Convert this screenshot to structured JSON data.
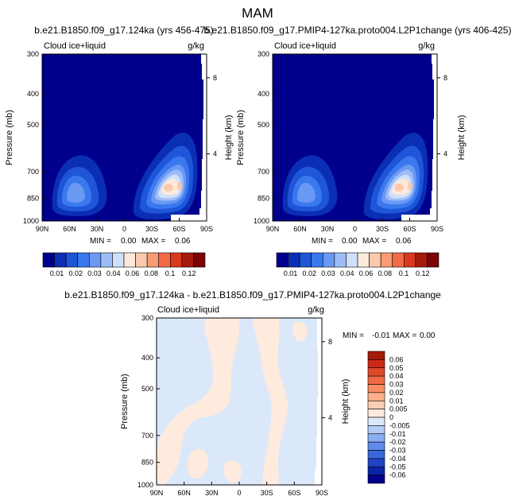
{
  "figure": {
    "title": "MAM"
  },
  "chart_data": [
    {
      "type": "heatmap",
      "title": "b.e21.B1850.f09_g17.124ka (yrs 456-475)",
      "variable": "Cloud ice+liquid",
      "units": "g/kg",
      "xlabel": "",
      "ylabel": "Pressure (mb)",
      "y2label": "Height (km)",
      "x_ticks": [
        "90N",
        "60N",
        "30N",
        "0",
        "30S",
        "60S",
        "90S"
      ],
      "y_ticks": [
        "300",
        "400",
        "500",
        "700",
        "850",
        "1000"
      ],
      "y2_ticks": [
        "8",
        "4"
      ],
      "ylim": [
        1000,
        300
      ],
      "y_scale": "log",
      "stats": {
        "min_label": "MIN =",
        "min": "0.00",
        "max_label": "MAX =",
        "max": "0.06"
      },
      "colorbar": {
        "orientation": "horizontal",
        "labels": [
          "0.01",
          "0.02",
          "0.03",
          "0.04",
          "0.06",
          "0.08",
          "0.1",
          "0.12"
        ],
        "colors": [
          "#00008c",
          "#0a2fb4",
          "#1f55d8",
          "#3a78ee",
          "#6a99f4",
          "#9ebcf7",
          "#cfe0fa",
          "#fde9dc",
          "#fcc9ad",
          "#f99b74",
          "#f26a45",
          "#d9391f",
          "#a61a0c",
          "#7a0504"
        ]
      },
      "features": [
        {
          "name": "northern-maximum",
          "lat": "65N",
          "pressure": 850,
          "value": 0.035
        },
        {
          "name": "southern-maximum",
          "lat": "55S",
          "pressure": 850,
          "value": 0.06
        }
      ]
    },
    {
      "type": "heatmap",
      "title": "b.e21.B1850.f09_g17.PMIP4-127ka.proto004.L2P1change (yrs 406-425)",
      "variable": "Cloud ice+liquid",
      "units": "g/kg",
      "xlabel": "",
      "ylabel": "Pressure (mb)",
      "y2label": "Height (km)",
      "x_ticks": [
        "90N",
        "60N",
        "30N",
        "0",
        "30S",
        "60S",
        "90S"
      ],
      "y_ticks": [
        "300",
        "400",
        "500",
        "700",
        "850",
        "1000"
      ],
      "y2_ticks": [
        "8",
        "4"
      ],
      "ylim": [
        1000,
        300
      ],
      "y_scale": "log",
      "stats": {
        "min_label": "MIN =",
        "min": "0.00",
        "max_label": "MAX =",
        "max": "0.06"
      },
      "colorbar": {
        "orientation": "horizontal",
        "labels": [
          "0.01",
          "0.02",
          "0.03",
          "0.04",
          "0.06",
          "0.08",
          "0.1",
          "0.12"
        ],
        "colors": [
          "#00008c",
          "#0a2fb4",
          "#1f55d8",
          "#3a78ee",
          "#6a99f4",
          "#9ebcf7",
          "#cfe0fa",
          "#fde9dc",
          "#fcc9ad",
          "#f99b74",
          "#f26a45",
          "#d9391f",
          "#a61a0c",
          "#7a0504"
        ]
      },
      "features": [
        {
          "name": "northern-maximum",
          "lat": "65N",
          "pressure": 850,
          "value": 0.035
        },
        {
          "name": "southern-maximum",
          "lat": "55S",
          "pressure": 850,
          "value": 0.06
        }
      ]
    },
    {
      "type": "heatmap",
      "title": "b.e21.B1850.f09_g17.124ka - b.e21.B1850.f09_g17.PMIP4-127ka.proto004.L2P1change",
      "variable": "Cloud ice+liquid",
      "units": "g/kg",
      "xlabel": "",
      "ylabel": "Pressure (mb)",
      "y2label": "Height (km)",
      "x_ticks": [
        "90N",
        "60N",
        "30N",
        "0",
        "30S",
        "60S",
        "90S"
      ],
      "y_ticks": [
        "300",
        "400",
        "500",
        "700",
        "850",
        "1000"
      ],
      "y2_ticks": [
        "8",
        "4"
      ],
      "ylim": [
        1000,
        300
      ],
      "y_scale": "log",
      "stats": {
        "min_label": "MIN =",
        "min": "-0.01",
        "max_label": "MAX =",
        "max": "0.00"
      },
      "colorbar": {
        "orientation": "vertical",
        "labels": [
          "0.06",
          "0.05",
          "0.04",
          "0.03",
          "0.02",
          "0.01",
          "0.005",
          "0",
          "-0.005",
          "-0.01",
          "-0.02",
          "-0.03",
          "-0.04",
          "-0.05",
          "-0.06"
        ],
        "colors": [
          "#a61a0c",
          "#cc2a16",
          "#e04a28",
          "#f26a45",
          "#f78d62",
          "#fab08a",
          "#fccfb4",
          "#feebdd",
          "#dbe8fa",
          "#b4cdf6",
          "#8aaef2",
          "#5f8bea",
          "#3a68dc",
          "#1f45c4",
          "#0a24a6",
          "#00008c"
        ]
      },
      "features": [
        {
          "name": "background",
          "value": -0.005
        },
        {
          "name": "positive-band",
          "value": 0.005
        }
      ]
    }
  ]
}
